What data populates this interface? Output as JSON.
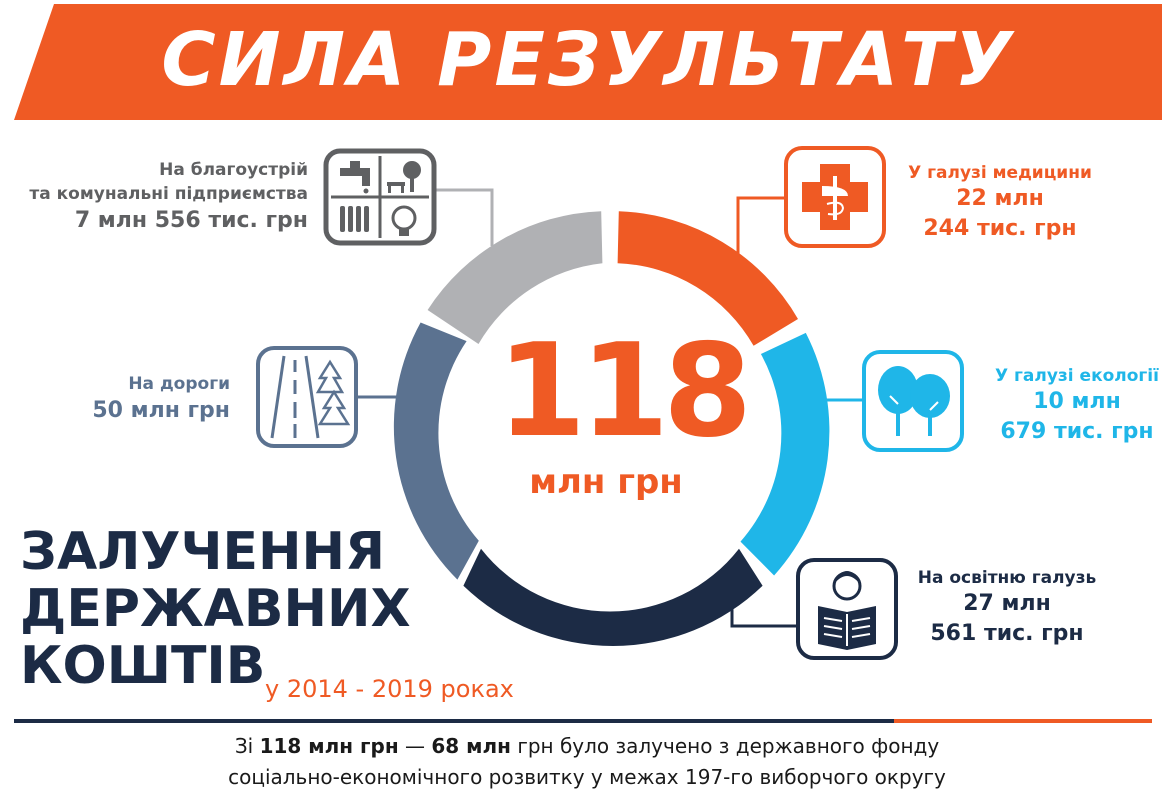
{
  "banner": {
    "title": "СИЛА РЕЗУЛЬТАТУ"
  },
  "total": {
    "value": "118",
    "unit": "млн грн"
  },
  "segments": {
    "utilities": {
      "label_line1": "На благоустрій",
      "label_line2": "та комунальні підприємства",
      "amount": "7 млн 556 тис. грн"
    },
    "roads": {
      "label": "На дороги",
      "amount": "50 млн грн"
    },
    "medicine": {
      "label": "У галузі медицини",
      "amount_line1": "22 млн",
      "amount_line2": "244 тис. грн"
    },
    "ecology": {
      "label": "У галузі екології",
      "amount_line1": "10 млн",
      "amount_line2": "679 тис. грн"
    },
    "education": {
      "label": "На освітню галузь",
      "amount_line1": "27 млн",
      "amount_line2": "561 тис. грн"
    }
  },
  "heading": {
    "line1": "ЗАЛУЧЕННЯ",
    "line2": "ДЕРЖАВНИХ",
    "line3": "КОШТІВ",
    "period": "у 2014 - 2019 роках"
  },
  "footer": {
    "line1_prefix": "Зі ",
    "line1_bold1": "118 млн грн",
    "line1_dash": " — ",
    "line1_bold2": "68 млн",
    "line1_rest": " грн було залучено з державного фонду",
    "line2": "соціально-економічного розвитку у межах 197-го виборчого округу"
  },
  "colors": {
    "orange": "#ef5a24",
    "navy": "#1c2b45",
    "slate": "#5b7290",
    "gray": "#5f6062",
    "light_gray": "#b0b1b4",
    "blue": "#1fb6e8"
  },
  "icons": {
    "utilities": "utilities-icon",
    "roads": "road-icon",
    "medicine": "medical-cross-icon",
    "ecology": "trees-icon",
    "education": "reading-person-icon"
  }
}
